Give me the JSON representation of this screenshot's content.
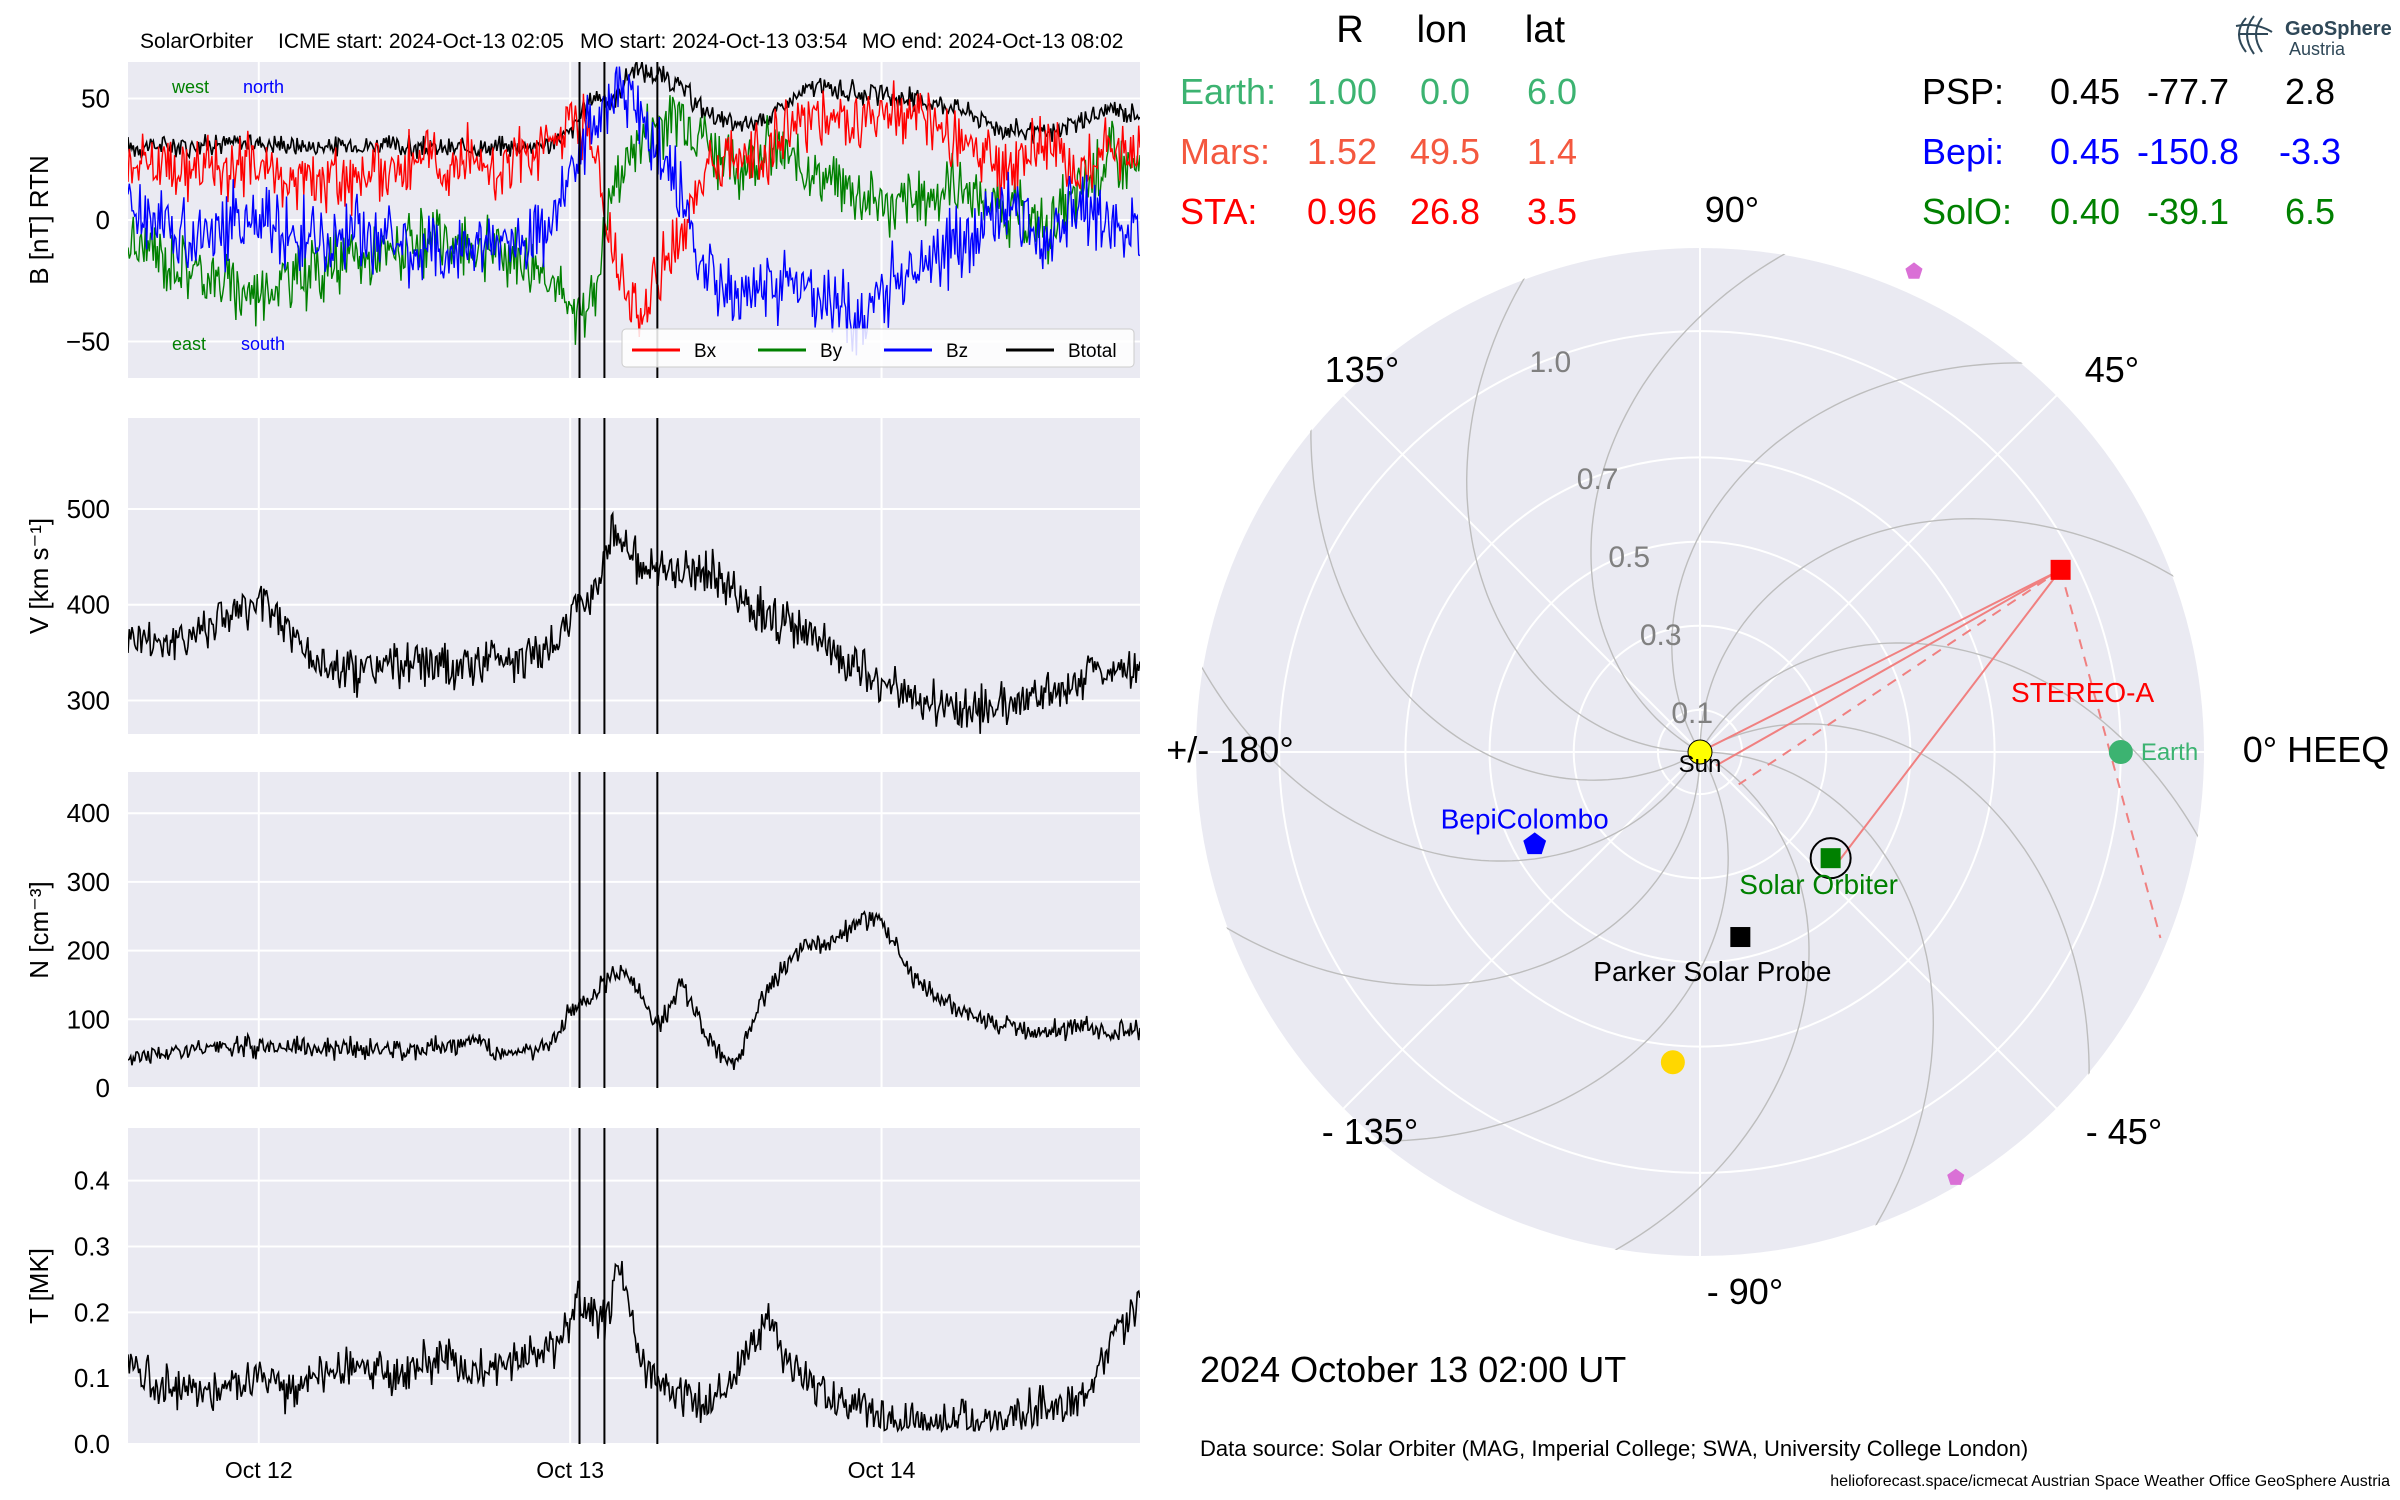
{
  "header": {
    "spacecraft": "SolarOrbiter",
    "icme_start": "ICME start: 2024-Oct-13 02:05",
    "mo_start": "MO start: 2024-Oct-13 03:54",
    "mo_end": "MO end: 2024-Oct-13 08:02"
  },
  "logo": {
    "line1": "GeoSphere",
    "line2": "Austria"
  },
  "timestamp": "2024 October 13  02:00 UT",
  "footer": {
    "data_source": "Data source: Solar Orbiter (MAG, Imperial College; SWA, University College London)",
    "credits": "helioforecast.space/icmecat   Austrian Space Weather Office   GeoSphere Austria"
  },
  "colors": {
    "bx": "#ff0000",
    "by": "#008000",
    "bz": "#0000ff",
    "btot": "#000000",
    "earth": "#3cb371",
    "mars": "#f4583f",
    "sta": "#ff0000",
    "psp": "#000000",
    "bepi": "#0000ff",
    "solo": "#008000",
    "sun": "#ffff00",
    "panel_bg": "#eaeaf2"
  },
  "position_table": {
    "headers": [
      "R",
      "lon",
      "lat"
    ],
    "left_rows": [
      {
        "name": "Earth:",
        "r": "1.00",
        "lon": "0.0",
        "lat": "6.0",
        "color": "#3cb371"
      },
      {
        "name": "Mars:",
        "r": "1.52",
        "lon": "49.5",
        "lat": "1.4",
        "color": "#f4583f"
      },
      {
        "name": "STA:",
        "r": "0.96",
        "lon": "26.8",
        "lat": "3.5",
        "color": "#ff0000"
      }
    ],
    "right_rows": [
      {
        "name": "PSP:",
        "r": "0.45",
        "lon": "-77.7",
        "lat": "2.8",
        "color": "#000000"
      },
      {
        "name": "Bepi:",
        "r": "0.45",
        "lon": "-150.8",
        "lat": "-3.3",
        "color": "#0000ff"
      },
      {
        "name": "SolO:",
        "r": "0.40",
        "lon": "-39.1",
        "lat": "6.5",
        "color": "#008000"
      }
    ]
  },
  "chart_data": [
    {
      "type": "line",
      "panel": "magnetic-field",
      "ylabel": "B [nT] RTN",
      "ylim": [
        -65,
        65
      ],
      "yticks": [
        "50",
        "0",
        "−50"
      ],
      "ytick_values": [
        50,
        0,
        -50
      ],
      "xlim_days": [
        0,
        3.25
      ],
      "xtick_labels": [
        "Oct 12",
        "Oct 13",
        "Oct 14"
      ],
      "annotations": {
        "west": "west",
        "north": "north",
        "east": "east",
        "south": "south"
      },
      "legend": [
        "Bx",
        "By",
        "Bz",
        "Btotal"
      ],
      "legend_position": "lower right",
      "event_lines": [
        "2024-Oct-13 02:05",
        "2024-Oct-13 03:54",
        "2024-Oct-13 08:02"
      ],
      "series": [
        {
          "name": "Btotal",
          "values": [
            [
              0,
              30
            ],
            [
              0.2,
              31
            ],
            [
              0.4,
              32
            ],
            [
              0.6,
              30
            ],
            [
              0.8,
              31
            ],
            [
              1.0,
              29
            ],
            [
              1.2,
              30
            ],
            [
              1.35,
              31
            ],
            [
              1.42,
              36
            ],
            [
              1.5,
              52
            ],
            [
              1.55,
              48
            ],
            [
              1.62,
              62
            ],
            [
              1.7,
              60
            ],
            [
              1.78,
              54
            ],
            [
              1.85,
              45
            ],
            [
              1.95,
              38
            ],
            [
              2.05,
              42
            ],
            [
              2.2,
              55
            ],
            [
              2.35,
              52
            ],
            [
              2.5,
              50
            ],
            [
              2.65,
              47
            ],
            [
              2.8,
              38
            ],
            [
              2.95,
              35
            ],
            [
              3.05,
              40
            ],
            [
              3.15,
              45
            ],
            [
              3.25,
              44
            ]
          ]
        },
        {
          "name": "Bx",
          "values": [
            [
              0,
              25
            ],
            [
              0.2,
              20
            ],
            [
              0.4,
              22
            ],
            [
              0.6,
              15
            ],
            [
              0.8,
              20
            ],
            [
              1.0,
              25
            ],
            [
              1.2,
              22
            ],
            [
              1.35,
              30
            ],
            [
              1.42,
              45
            ],
            [
              1.5,
              30
            ],
            [
              1.55,
              -10
            ],
            [
              1.62,
              -40
            ],
            [
              1.7,
              -25
            ],
            [
              1.78,
              -5
            ],
            [
              1.85,
              20
            ],
            [
              1.95,
              25
            ],
            [
              2.05,
              30
            ],
            [
              2.2,
              45
            ],
            [
              2.35,
              40
            ],
            [
              2.5,
              42
            ],
            [
              2.65,
              35
            ],
            [
              2.8,
              20
            ],
            [
              2.95,
              30
            ],
            [
              3.05,
              20
            ],
            [
              3.15,
              30
            ],
            [
              3.25,
              28
            ]
          ]
        },
        {
          "name": "By",
          "values": [
            [
              0,
              -10
            ],
            [
              0.2,
              -20
            ],
            [
              0.4,
              -30
            ],
            [
              0.6,
              -20
            ],
            [
              0.8,
              -15
            ],
            [
              1.0,
              -10
            ],
            [
              1.2,
              -12
            ],
            [
              1.35,
              -20
            ],
            [
              1.42,
              -40
            ],
            [
              1.5,
              -30
            ],
            [
              1.55,
              10
            ],
            [
              1.62,
              30
            ],
            [
              1.7,
              40
            ],
            [
              1.78,
              45
            ],
            [
              1.85,
              35
            ],
            [
              1.95,
              20
            ],
            [
              2.05,
              30
            ],
            [
              2.2,
              20
            ],
            [
              2.35,
              10
            ],
            [
              2.5,
              5
            ],
            [
              2.65,
              15
            ],
            [
              2.8,
              5
            ],
            [
              2.95,
              -5
            ],
            [
              3.05,
              10
            ],
            [
              3.15,
              25
            ],
            [
              3.25,
              20
            ]
          ]
        },
        {
          "name": "Bz",
          "values": [
            [
              0,
              5
            ],
            [
              0.2,
              -5
            ],
            [
              0.4,
              0
            ],
            [
              0.6,
              -10
            ],
            [
              0.8,
              -5
            ],
            [
              1.0,
              -15
            ],
            [
              1.2,
              -10
            ],
            [
              1.35,
              -5
            ],
            [
              1.42,
              20
            ],
            [
              1.5,
              40
            ],
            [
              1.55,
              55
            ],
            [
              1.62,
              50
            ],
            [
              1.7,
              30
            ],
            [
              1.78,
              10
            ],
            [
              1.85,
              -20
            ],
            [
              1.95,
              -35
            ],
            [
              2.05,
              -25
            ],
            [
              2.2,
              -30
            ],
            [
              2.35,
              -40
            ],
            [
              2.5,
              -20
            ],
            [
              2.65,
              -10
            ],
            [
              2.8,
              5
            ],
            [
              2.95,
              -10
            ],
            [
              3.05,
              5
            ],
            [
              3.15,
              0
            ],
            [
              3.25,
              -5
            ]
          ]
        }
      ]
    },
    {
      "type": "line",
      "panel": "speed",
      "ylabel": "V [km s⁻¹]",
      "ylim": [
        265,
        595
      ],
      "yticks": [
        "500",
        "400",
        "300"
      ],
      "ytick_values": [
        500,
        400,
        300
      ],
      "series": [
        {
          "name": "V",
          "values": [
            [
              0,
              370
            ],
            [
              0.15,
              360
            ],
            [
              0.3,
              390
            ],
            [
              0.45,
              400
            ],
            [
              0.6,
              340
            ],
            [
              0.75,
              330
            ],
            [
              0.9,
              340
            ],
            [
              1.05,
              330
            ],
            [
              1.2,
              345
            ],
            [
              1.35,
              350
            ],
            [
              1.45,
              400
            ],
            [
              1.5,
              420
            ],
            [
              1.56,
              480
            ],
            [
              1.62,
              450
            ],
            [
              1.7,
              430
            ],
            [
              1.8,
              440
            ],
            [
              1.9,
              425
            ],
            [
              2.0,
              400
            ],
            [
              2.1,
              380
            ],
            [
              2.25,
              355
            ],
            [
              2.4,
              320
            ],
            [
              2.55,
              300
            ],
            [
              2.7,
              290
            ],
            [
              2.85,
              300
            ],
            [
              3.0,
              310
            ],
            [
              3.1,
              330
            ],
            [
              3.25,
              340
            ]
          ]
        }
      ]
    },
    {
      "type": "line",
      "panel": "density",
      "ylabel": "N [cm⁻³]",
      "ylim": [
        0,
        460
      ],
      "yticks": [
        "400",
        "300",
        "200",
        "100",
        "0"
      ],
      "ytick_values": [
        400,
        300,
        200,
        100,
        0
      ],
      "series": [
        {
          "name": "N",
          "values": [
            [
              0,
              45
            ],
            [
              0.2,
              55
            ],
            [
              0.4,
              60
            ],
            [
              0.6,
              60
            ],
            [
              0.8,
              55
            ],
            [
              1.0,
              60
            ],
            [
              1.1,
              70
            ],
            [
              1.2,
              50
            ],
            [
              1.35,
              60
            ],
            [
              1.42,
              110
            ],
            [
              1.5,
              140
            ],
            [
              1.56,
              170
            ],
            [
              1.62,
              160
            ],
            [
              1.7,
              90
            ],
            [
              1.78,
              150
            ],
            [
              1.85,
              80
            ],
            [
              1.95,
              30
            ],
            [
              2.05,
              140
            ],
            [
              2.15,
              200
            ],
            [
              2.25,
              210
            ],
            [
              2.35,
              240
            ],
            [
              2.42,
              250
            ],
            [
              2.5,
              170
            ],
            [
              2.6,
              130
            ],
            [
              2.75,
              100
            ],
            [
              2.9,
              80
            ],
            [
              3.05,
              90
            ],
            [
              3.25,
              80
            ]
          ]
        }
      ]
    },
    {
      "type": "line",
      "panel": "temperature",
      "ylabel": "T [MK]",
      "ylim": [
        0,
        0.48
      ],
      "yticks": [
        "0.4",
        "0.3",
        "0.2",
        "0.1",
        "0.0"
      ],
      "ytick_values": [
        0.4,
        0.3,
        0.2,
        0.1,
        0.0
      ],
      "series": [
        {
          "name": "T",
          "values": [
            [
              0,
              0.13
            ],
            [
              0.1,
              0.09
            ],
            [
              0.25,
              0.08
            ],
            [
              0.4,
              0.1
            ],
            [
              0.55,
              0.08
            ],
            [
              0.7,
              0.12
            ],
            [
              0.85,
              0.1
            ],
            [
              1.0,
              0.13
            ],
            [
              1.1,
              0.11
            ],
            [
              1.25,
              0.13
            ],
            [
              1.38,
              0.15
            ],
            [
              1.45,
              0.22
            ],
            [
              1.52,
              0.18
            ],
            [
              1.58,
              0.27
            ],
            [
              1.65,
              0.12
            ],
            [
              1.75,
              0.08
            ],
            [
              1.85,
              0.05
            ],
            [
              1.95,
              0.1
            ],
            [
              2.05,
              0.2
            ],
            [
              2.15,
              0.1
            ],
            [
              2.3,
              0.06
            ],
            [
              2.45,
              0.04
            ],
            [
              2.6,
              0.03
            ],
            [
              2.75,
              0.04
            ],
            [
              2.9,
              0.05
            ],
            [
              3.05,
              0.06
            ],
            [
              3.15,
              0.15
            ],
            [
              3.25,
              0.22
            ]
          ]
        }
      ]
    },
    {
      "type": "scatter",
      "panel": "orbit-polar",
      "coordinate_system": "HEEQ",
      "angle_labels": [
        "0° HEEQ",
        "45°",
        "90°",
        "135°",
        "+/- 180°",
        "- 135°",
        "- 90°",
        "- 45°"
      ],
      "angle_values": [
        0,
        45,
        90,
        135,
        180,
        -135,
        -90,
        -45
      ],
      "radial_labels": [
        "0.1",
        "0.3",
        "0.5",
        "0.7",
        "1.0"
      ],
      "radial_values": [
        0.1,
        0.3,
        0.5,
        0.7,
        1.0
      ],
      "rlim": [
        0,
        1.2
      ],
      "points": [
        {
          "name": "Sun",
          "label": "Sun",
          "r": 0.0,
          "lon": 0,
          "marker": "circle",
          "color": "#ffff00"
        },
        {
          "name": "Earth",
          "label": "Earth",
          "r": 1.0,
          "lon": 0.0,
          "marker": "circle",
          "color": "#3cb371"
        },
        {
          "name": "STEREO-A",
          "label": "STEREO-A",
          "r": 0.96,
          "lon": 26.8,
          "marker": "square",
          "color": "#ff0000"
        },
        {
          "name": "Solar Orbiter",
          "label": "Solar Orbiter",
          "r": 0.4,
          "lon": -39.1,
          "marker": "square",
          "color": "#008000"
        },
        {
          "name": "Parker Solar Probe",
          "label": "Parker Solar Probe",
          "r": 0.45,
          "lon": -77.7,
          "marker": "square",
          "color": "#000000"
        },
        {
          "name": "BepiColombo",
          "label": "BepiColombo",
          "r": 0.45,
          "lon": -150.8,
          "marker": "pentagon",
          "color": "#0000ff"
        },
        {
          "name": "gold-object",
          "label": "",
          "r": 0.74,
          "lon": -95,
          "marker": "circle",
          "color": "#ffd700"
        },
        {
          "name": "violet-object-north",
          "label": "",
          "r": 1.25,
          "lon": 66,
          "marker": "pentagon",
          "color": "#da70d6"
        },
        {
          "name": "violet-object-south",
          "label": "",
          "r": 1.18,
          "lon": -59,
          "marker": "pentagon",
          "color": "#da70d6"
        }
      ]
    }
  ]
}
